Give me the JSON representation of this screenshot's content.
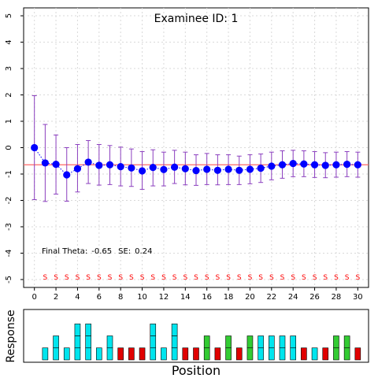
{
  "chart_data": [
    {
      "type": "line",
      "title": "Examinee ID: 1",
      "note": {
        "final_theta_label": "Final Theta:",
        "final_theta_value": "-0.65",
        "se_label": "SE:",
        "se_value": "0.24"
      },
      "x": [
        0,
        1,
        2,
        3,
        4,
        5,
        6,
        7,
        8,
        9,
        10,
        11,
        12,
        13,
        14,
        15,
        16,
        17,
        18,
        19,
        20,
        21,
        22,
        23,
        24,
        25,
        26,
        27,
        28,
        29,
        30
      ],
      "theta": [
        0.0,
        -0.58,
        -0.63,
        -1.03,
        -0.8,
        -0.55,
        -0.67,
        -0.65,
        -0.72,
        -0.77,
        -0.88,
        -0.75,
        -0.83,
        -0.74,
        -0.8,
        -0.87,
        -0.82,
        -0.86,
        -0.82,
        -0.86,
        -0.82,
        -0.78,
        -0.7,
        -0.65,
        -0.6,
        -0.62,
        -0.65,
        -0.67,
        -0.65,
        -0.63,
        -0.65
      ],
      "upper": [
        1.97,
        0.88,
        0.48,
        0.0,
        0.12,
        0.27,
        0.12,
        0.08,
        0.02,
        -0.05,
        -0.15,
        -0.08,
        -0.17,
        -0.1,
        -0.17,
        -0.27,
        -0.22,
        -0.27,
        -0.27,
        -0.32,
        -0.27,
        -0.24,
        -0.17,
        -0.12,
        -0.1,
        -0.12,
        -0.15,
        -0.19,
        -0.17,
        -0.15,
        -0.17
      ],
      "lower": [
        -1.97,
        -2.04,
        -1.76,
        -2.03,
        -1.68,
        -1.36,
        -1.42,
        -1.4,
        -1.45,
        -1.47,
        -1.58,
        -1.45,
        -1.45,
        -1.36,
        -1.41,
        -1.43,
        -1.4,
        -1.41,
        -1.4,
        -1.4,
        -1.37,
        -1.32,
        -1.22,
        -1.16,
        -1.1,
        -1.1,
        -1.13,
        -1.14,
        -1.12,
        -1.1,
        -1.12
      ],
      "final_theta": -0.65,
      "s_markers_x": [
        1,
        2,
        3,
        4,
        5,
        6,
        7,
        8,
        9,
        10,
        11,
        12,
        13,
        14,
        15,
        16,
        17,
        18,
        19,
        20,
        21,
        22,
        23,
        24,
        25,
        26,
        27,
        28,
        29,
        30
      ],
      "s_marker_label": "S",
      "xlim": [
        -1,
        31
      ],
      "ylim": [
        -5.3,
        5.3
      ],
      "xticks": [
        0,
        2,
        4,
        6,
        8,
        10,
        12,
        14,
        16,
        18,
        20,
        22,
        24,
        26,
        28,
        30
      ],
      "yticks": [
        -5,
        -4,
        -3,
        -2,
        -1,
        0,
        1,
        2,
        3,
        4,
        5
      ],
      "ytick_labels": [
        "-5",
        "-4",
        "-3",
        "-2",
        "-1",
        "0",
        "1",
        "2",
        "3",
        "4",
        "5"
      ],
      "grid": true,
      "colors": {
        "point": "#0000ff",
        "errorbar": "#8b3fbf",
        "final_line": "#ff6666",
        "s_marker": "#ff0000",
        "grid": "#d9d9d9"
      }
    },
    {
      "type": "bar",
      "xlabel": "Position",
      "ylabel": "Response",
      "x": [
        1,
        2,
        3,
        4,
        5,
        6,
        7,
        8,
        9,
        10,
        11,
        12,
        13,
        14,
        15,
        16,
        17,
        18,
        19,
        20,
        21,
        22,
        23,
        24,
        25,
        26,
        27,
        28,
        29,
        30
      ],
      "values": [
        1,
        2,
        1,
        3,
        3,
        1,
        2,
        1,
        1,
        1,
        3,
        1,
        3,
        1,
        1,
        2,
        1,
        2,
        1,
        2,
        2,
        2,
        2,
        2,
        1,
        1,
        1,
        2,
        2,
        1
      ],
      "bar_colors": [
        "#00e5ee",
        "#00e5ee",
        "#00e5ee",
        "#00e5ee",
        "#00e5ee",
        "#00e5ee",
        "#00e5ee",
        "#e00000",
        "#e00000",
        "#e00000",
        "#00e5ee",
        "#00e5ee",
        "#00e5ee",
        "#e00000",
        "#e00000",
        "#33cc33",
        "#e00000",
        "#33cc33",
        "#e00000",
        "#33cc33",
        "#00e5ee",
        "#00e5ee",
        "#00e5ee",
        "#00e5ee",
        "#e00000",
        "#00e5ee",
        "#e00000",
        "#33cc33",
        "#33cc33",
        "#e00000"
      ],
      "ylim": [
        0,
        4
      ],
      "xlim": [
        -1,
        31
      ]
    }
  ]
}
